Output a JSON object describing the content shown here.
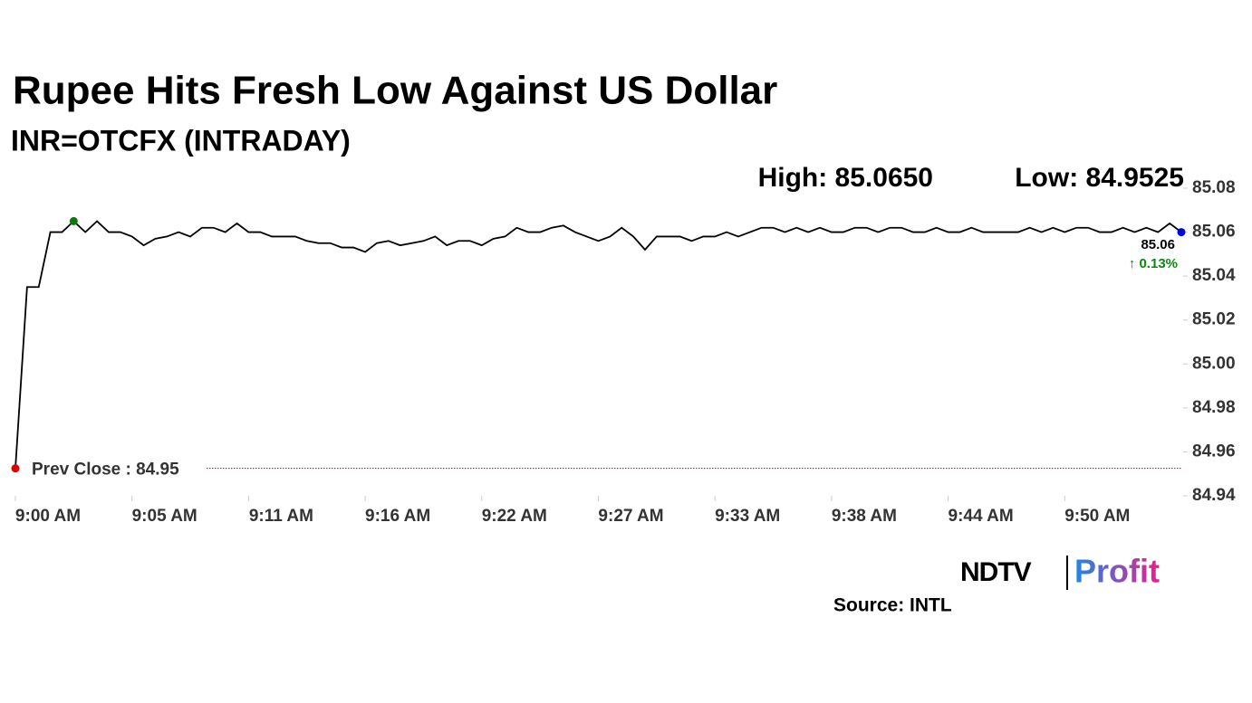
{
  "chart_data": {
    "type": "line",
    "title": "Rupee Hits Fresh Low Against US Dollar",
    "subtitle": "INR=OTCFX (INTRADAY)",
    "high_label": "High: 85.0650",
    "low_label": "Low: 84.9525",
    "last_label": "85.06",
    "change_label": "↑ 0.13%",
    "prev_close": {
      "value": 84.9525,
      "label": "Prev Close : 84.95"
    },
    "source": "Source: INTL",
    "logo": {
      "left": "NDTV",
      "right": "Profit"
    },
    "categories": [
      "9:00 AM",
      null,
      null,
      null,
      null,
      null,
      null,
      null,
      null,
      null,
      "9:05 AM",
      null,
      null,
      null,
      null,
      null,
      null,
      null,
      null,
      null,
      "9:11 AM",
      null,
      null,
      null,
      null,
      null,
      null,
      null,
      null,
      null,
      "9:16 AM",
      null,
      null,
      null,
      null,
      null,
      null,
      null,
      null,
      null,
      "9:22 AM",
      null,
      null,
      null,
      null,
      null,
      null,
      null,
      null,
      null,
      "9:27 AM",
      null,
      null,
      null,
      null,
      null,
      null,
      null,
      null,
      null,
      "9:33 AM",
      null,
      null,
      null,
      null,
      null,
      null,
      null,
      null,
      null,
      "9:38 AM",
      null,
      null,
      null,
      null,
      null,
      null,
      null,
      null,
      null,
      "9:44 AM",
      null,
      null,
      null,
      null,
      null,
      null,
      null,
      null,
      null,
      "9:50 AM",
      null,
      null,
      null,
      null,
      null,
      null,
      null,
      null,
      null,
      null
    ],
    "series": [
      {
        "name": "INR=OTCFX",
        "color": "#000000",
        "values": [
          84.9525,
          85.035,
          85.035,
          85.06,
          85.06,
          85.065,
          85.06,
          85.065,
          85.06,
          85.06,
          85.058,
          85.054,
          85.057,
          85.058,
          85.06,
          85.058,
          85.062,
          85.062,
          85.06,
          85.064,
          85.06,
          85.06,
          85.058,
          85.058,
          85.058,
          85.056,
          85.055,
          85.055,
          85.053,
          85.053,
          85.051,
          85.055,
          85.056,
          85.054,
          85.055,
          85.056,
          85.058,
          85.054,
          85.056,
          85.056,
          85.054,
          85.057,
          85.058,
          85.062,
          85.06,
          85.06,
          85.062,
          85.063,
          85.06,
          85.058,
          85.056,
          85.058,
          85.062,
          85.058,
          85.052,
          85.058,
          85.058,
          85.058,
          85.056,
          85.058,
          85.058,
          85.06,
          85.058,
          85.06,
          85.062,
          85.062,
          85.06,
          85.062,
          85.06,
          85.062,
          85.06,
          85.06,
          85.062,
          85.062,
          85.06,
          85.062,
          85.062,
          85.06,
          85.06,
          85.062,
          85.06,
          85.06,
          85.062,
          85.06,
          85.06,
          85.06,
          85.06,
          85.062,
          85.06,
          85.062,
          85.06,
          85.062,
          85.062,
          85.06,
          85.06,
          85.062,
          85.06,
          85.062,
          85.06,
          85.064,
          85.06
        ]
      }
    ],
    "start_color": "#e00000",
    "high_color": "#0a7a0a",
    "end_color": "#0000e0",
    "prev_close_color": "#e00000",
    "change_color": "#0a8a0a",
    "ylim": [
      84.94,
      85.08
    ],
    "yticks": [
      84.94,
      84.96,
      84.98,
      {
        "value": 85,
        "label": "85.00"
      },
      85.02,
      85.04,
      85.06,
      85.08
    ]
  }
}
